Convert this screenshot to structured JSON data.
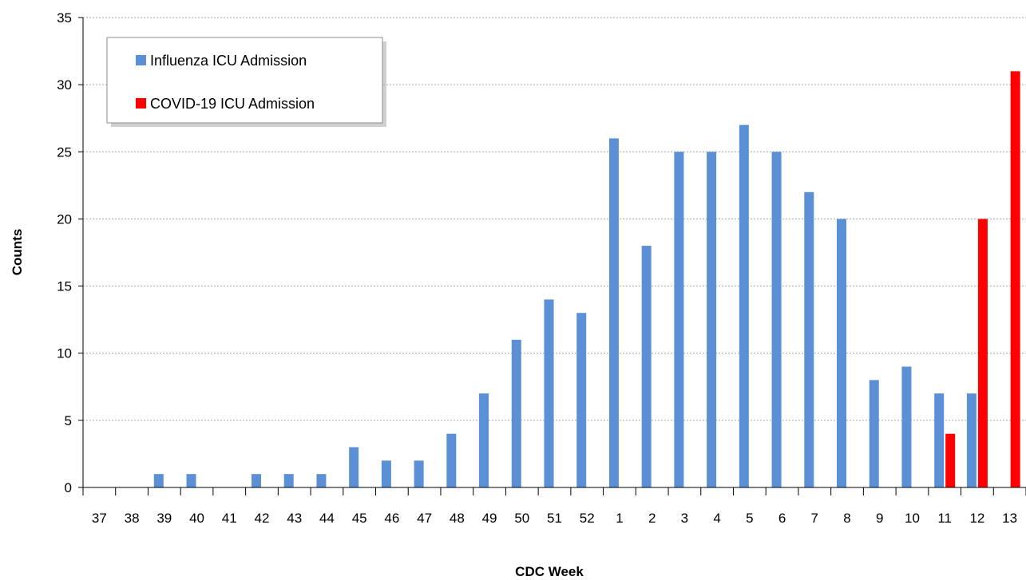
{
  "chart_data": {
    "type": "bar",
    "title": "",
    "xlabel": "CDC Week",
    "ylabel": "Counts",
    "ylim": [
      0,
      35
    ],
    "yticks": [
      0,
      5,
      10,
      15,
      20,
      25,
      30,
      35
    ],
    "grid": "horizontal dotted",
    "legend_position": "top-left",
    "categories": [
      "37",
      "38",
      "39",
      "40",
      "41",
      "42",
      "43",
      "44",
      "45",
      "46",
      "47",
      "48",
      "49",
      "50",
      "51",
      "52",
      "1",
      "2",
      "3",
      "4",
      "5",
      "6",
      "7",
      "8",
      "9",
      "10",
      "11",
      "12",
      "13"
    ],
    "series": [
      {
        "name": "Influenza ICU Admission",
        "color": "#5B8FD6",
        "values": [
          0,
          0,
          1,
          1,
          0,
          1,
          1,
          1,
          3,
          2,
          2,
          4,
          7,
          11,
          14,
          13,
          26,
          18,
          25,
          25,
          27,
          25,
          22,
          20,
          8,
          9,
          7,
          7,
          0
        ]
      },
      {
        "name": "COVID-19 ICU Admission",
        "color": "#FF0000",
        "values": [
          0,
          0,
          0,
          0,
          0,
          0,
          0,
          0,
          0,
          0,
          0,
          0,
          0,
          0,
          0,
          0,
          0,
          0,
          0,
          0,
          0,
          0,
          0,
          0,
          0,
          0,
          4,
          20,
          31
        ]
      }
    ]
  }
}
